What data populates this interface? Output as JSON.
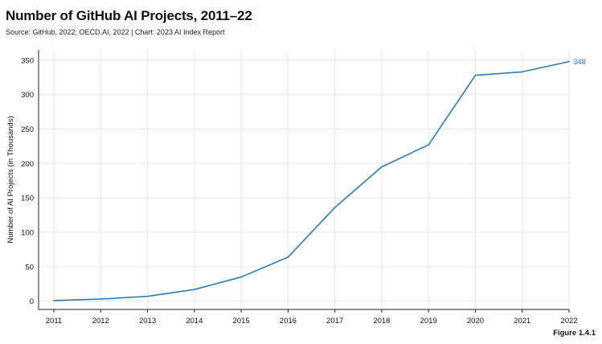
{
  "header": {
    "title": "Number of GitHub AI Projects, 2011–22",
    "subtitle": "Source: GitHub, 2022; OECD.AI, 2022 | Chart: 2023 AI Index Report"
  },
  "footer": {
    "figure_label": "Figure 1.4.1"
  },
  "chart_data": {
    "type": "line",
    "title": "Number of GitHub AI Projects, 2011–22",
    "xlabel": "",
    "ylabel": "Number of AI Projects (in Thousands)",
    "x": [
      "2011",
      "2012",
      "2013",
      "2014",
      "2015",
      "2016",
      "2017",
      "2018",
      "2019",
      "2020",
      "2021",
      "2022"
    ],
    "series": [
      {
        "values": [
          1,
          3,
          7,
          17,
          35,
          64,
          136,
          195,
          227,
          328,
          333,
          348
        ],
        "color": "#2b7bb9",
        "end_label": "348"
      }
    ],
    "yticks": [
      0,
      50,
      100,
      150,
      200,
      250,
      300,
      350
    ],
    "ylim": [
      -12,
      365
    ],
    "grid": true,
    "colors": {
      "line": "#2b7bb9",
      "grid": "#e6e6e6",
      "axis": "#222222"
    }
  }
}
